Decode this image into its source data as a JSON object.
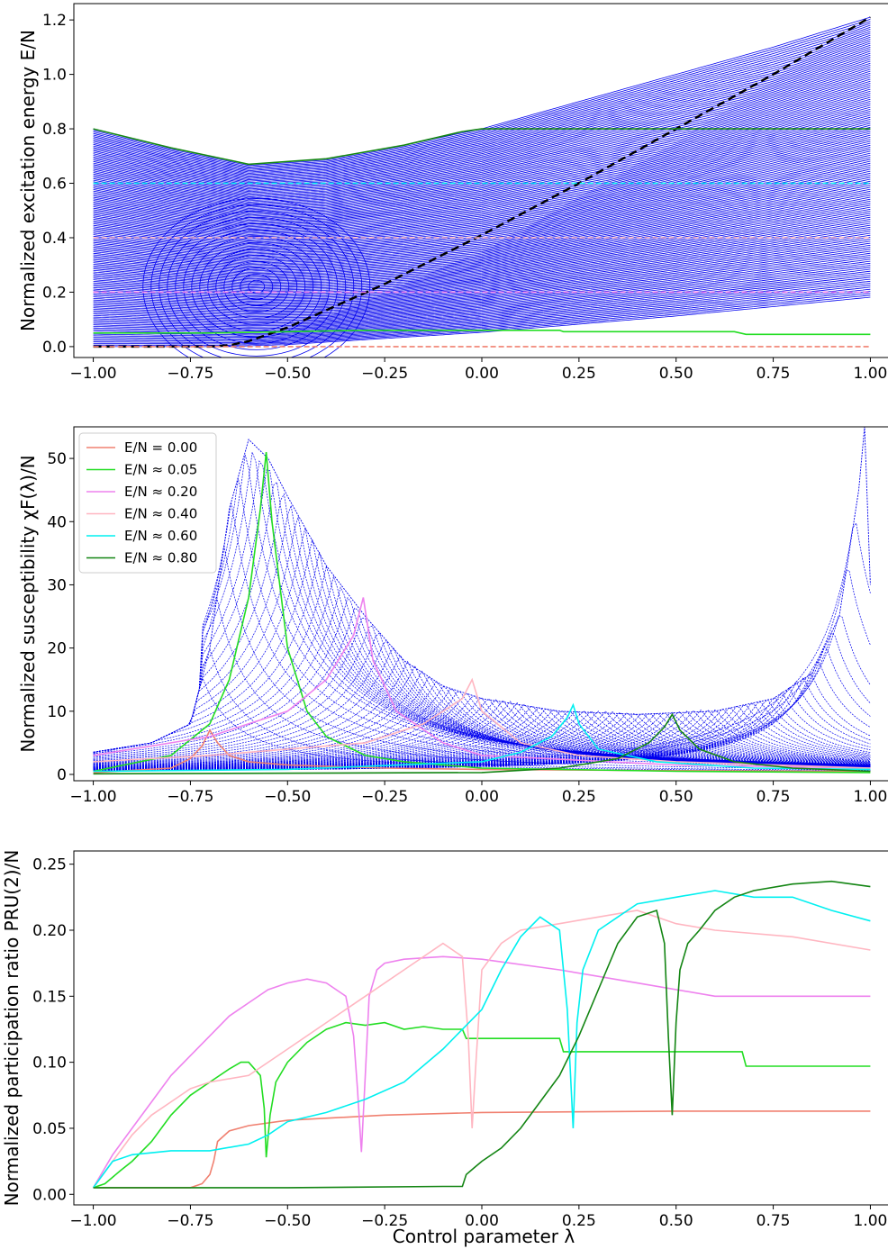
{
  "figure": {
    "xlabel": "Control parameter λ"
  },
  "colors": {
    "spectrum": "#0000ee",
    "gs_dashed": "#000000",
    "e0": "#f08070",
    "e005": "#22dd22",
    "e020": "#ee82ee",
    "e040": "#ffb6c1",
    "e060": "#00f0f0",
    "e080": "#138513"
  },
  "chart_data": [
    {
      "type": "line",
      "ylabel": "Normalized excitation energy E/N",
      "xlim": [
        -1.05,
        1.05
      ],
      "ylim": [
        -0.04,
        1.26
      ],
      "xticks": [
        "−1.00",
        "−0.75",
        "−0.50",
        "−0.25",
        "0.00",
        "0.25",
        "0.50",
        "0.75",
        "1.00"
      ],
      "xtick_values": [
        -1.0,
        -0.75,
        -0.5,
        -0.25,
        0.0,
        0.25,
        0.5,
        0.75,
        1.0
      ],
      "yticks": [
        "0.0",
        "0.2",
        "0.4",
        "0.6",
        "0.8",
        "1.0",
        "1.2"
      ],
      "ytick_values": [
        0.0,
        0.2,
        0.4,
        0.6,
        0.8,
        1.0,
        1.2
      ],
      "spectrum": {
        "levels": 140,
        "top_envelope": {
          "x": [
            -1.0,
            -0.8,
            -0.6,
            -0.4,
            -0.2,
            0.0,
            0.25,
            0.5,
            0.75,
            1.0
          ],
          "y": [
            0.8,
            0.73,
            0.67,
            0.69,
            0.74,
            0.8,
            0.9,
            1.0,
            1.1,
            1.21
          ]
        },
        "bottom_edge": {
          "x": [
            -1.0,
            -0.75,
            -0.65,
            -0.6,
            -0.5,
            0.0,
            0.5,
            1.0
          ],
          "y": [
            0.0,
            0.0,
            0.0,
            0.02,
            0.05,
            0.35,
            0.75,
            1.21
          ]
        }
      },
      "series": [
        {
          "key": "gs_dashed",
          "style": "dashed",
          "x": [
            -1.0,
            -0.7,
            -0.65,
            -0.6,
            -0.5,
            -0.25,
            0.0,
            0.25,
            0.5,
            0.75,
            1.0
          ],
          "y": [
            0.0,
            0.0,
            0.005,
            0.02,
            0.07,
            0.23,
            0.41,
            0.6,
            0.8,
            1.0,
            1.21
          ]
        },
        {
          "key": "e0",
          "x": [
            -1.0,
            1.0
          ],
          "y": [
            0.0,
            0.0
          ]
        },
        {
          "key": "e005",
          "x": [
            -1.0,
            -0.7,
            -0.5,
            -0.3,
            0.0,
            0.2,
            0.21,
            0.65,
            0.68,
            1.0
          ],
          "y": [
            0.05,
            0.05,
            0.055,
            0.06,
            0.06,
            0.06,
            0.055,
            0.055,
            0.045,
            0.045
          ]
        },
        {
          "key": "e020",
          "x": [
            -1.0,
            1.0
          ],
          "y": [
            0.2,
            0.2
          ]
        },
        {
          "key": "e040",
          "x": [
            -1.0,
            1.0
          ],
          "y": [
            0.4,
            0.4
          ]
        },
        {
          "key": "e060",
          "x": [
            -1.0,
            1.0
          ],
          "y": [
            0.6,
            0.6
          ]
        },
        {
          "key": "e080",
          "x": [
            -1.0,
            -0.8,
            -0.6,
            -0.4,
            -0.2,
            -0.05,
            0.0,
            1.0
          ],
          "y": [
            0.8,
            0.73,
            0.67,
            0.69,
            0.74,
            0.79,
            0.8,
            0.8
          ]
        }
      ]
    },
    {
      "type": "line",
      "ylabel": "Normalized susceptibility χF(λ)/N",
      "xlim": [
        -1.05,
        1.05
      ],
      "ylim": [
        -1,
        55
      ],
      "xticks": [
        "−1.00",
        "−0.75",
        "−0.50",
        "−0.25",
        "0.00",
        "0.25",
        "0.50",
        "0.75",
        "1.00"
      ],
      "xtick_values": [
        -1.0,
        -0.75,
        -0.5,
        -0.25,
        0.0,
        0.25,
        0.5,
        0.75,
        1.0
      ],
      "yticks": [
        "0",
        "10",
        "20",
        "30",
        "40",
        "50"
      ],
      "ytick_values": [
        0,
        10,
        20,
        30,
        40,
        50
      ],
      "legend": {
        "placement": "upper-left",
        "entries": [
          {
            "key": "e0",
            "label": "E/N = 0.00"
          },
          {
            "key": "e005",
            "label": "E/N ≈ 0.05"
          },
          {
            "key": "e020",
            "label": "E/N ≈ 0.20"
          },
          {
            "key": "e040",
            "label": "E/N ≈ 0.40"
          },
          {
            "key": "e060",
            "label": "E/N ≈ 0.60"
          },
          {
            "key": "e080",
            "label": "E/N ≈ 0.80"
          }
        ]
      },
      "spectrum": {
        "levels": 90,
        "envelope": {
          "x": [
            -1.0,
            -0.85,
            -0.75,
            -0.7,
            -0.65,
            -0.6,
            -0.55,
            -0.5,
            -0.4,
            -0.3,
            -0.2,
            -0.1,
            0.0,
            0.2,
            0.4,
            0.6,
            0.75,
            0.85,
            0.92,
            0.97,
            0.985,
            1.0
          ],
          "y": [
            3.5,
            5,
            8,
            20,
            42,
            53,
            50,
            44,
            33,
            25,
            18,
            14,
            12,
            10,
            9.5,
            10,
            12,
            16,
            25,
            45,
            55,
            30
          ]
        }
      },
      "series": [
        {
          "key": "e0",
          "x": [
            -1.0,
            -0.8,
            -0.75,
            -0.72,
            -0.7,
            -0.68,
            -0.65,
            -0.6,
            -0.5,
            -0.25,
            0.0,
            0.5,
            1.0
          ],
          "y": [
            0.3,
            1.0,
            2.5,
            4.5,
            7,
            5,
            3,
            2,
            1.5,
            1,
            0.8,
            0.6,
            0.5
          ]
        },
        {
          "key": "e005",
          "x": [
            -1.0,
            -0.8,
            -0.7,
            -0.65,
            -0.6,
            -0.57,
            -0.555,
            -0.54,
            -0.5,
            -0.45,
            -0.4,
            -0.3,
            -0.2,
            0.0,
            0.5,
            1.0
          ],
          "y": [
            0.5,
            3,
            8,
            15,
            28,
            42,
            51,
            40,
            20,
            10,
            6,
            3,
            2,
            1,
            0.5,
            0.3
          ]
        },
        {
          "key": "e020",
          "x": [
            -1.0,
            -0.7,
            -0.6,
            -0.5,
            -0.4,
            -0.33,
            -0.305,
            -0.28,
            -0.22,
            -0.1,
            0.0,
            0.5,
            1.0
          ],
          "y": [
            3,
            6,
            8,
            10,
            15,
            22,
            28,
            18,
            10,
            5,
            3,
            1.5,
            1
          ]
        },
        {
          "key": "e040",
          "x": [
            -1.0,
            -0.7,
            -0.5,
            -0.3,
            -0.15,
            -0.05,
            -0.025,
            0.0,
            0.1,
            0.25,
            0.5,
            1.0
          ],
          "y": [
            2,
            3,
            4,
            5,
            8,
            12,
            15,
            10,
            5,
            3,
            2,
            1
          ]
        },
        {
          "key": "e060",
          "x": [
            -1.0,
            -0.5,
            0.0,
            0.1,
            0.18,
            0.22,
            0.235,
            0.25,
            0.3,
            0.45,
            0.7,
            1.0
          ],
          "y": [
            0.5,
            0.8,
            2,
            3.5,
            6,
            9,
            11,
            8,
            4,
            2,
            1,
            0.8
          ]
        },
        {
          "key": "e080",
          "x": [
            -1.0,
            0.0,
            0.2,
            0.35,
            0.43,
            0.47,
            0.49,
            0.51,
            0.56,
            0.65,
            0.8,
            1.0
          ],
          "y": [
            0.1,
            0.3,
            1,
            2.5,
            5,
            7.5,
            9.5,
            7,
            4,
            2,
            1,
            0.5
          ]
        }
      ]
    },
    {
      "type": "line",
      "ylabel": "Normalized participation ratio PRU(2)/N",
      "xlabel_key": "figure.xlabel",
      "xlim": [
        -1.05,
        1.05
      ],
      "ylim": [
        -0.008,
        0.26
      ],
      "xticks": [
        "−1.00",
        "−0.75",
        "−0.50",
        "−0.25",
        "0.00",
        "0.25",
        "0.50",
        "0.75",
        "1.00"
      ],
      "xtick_values": [
        -1.0,
        -0.75,
        -0.5,
        -0.25,
        0.0,
        0.25,
        0.5,
        0.75,
        1.0
      ],
      "yticks": [
        "0.00",
        "0.05",
        "0.10",
        "0.15",
        "0.20",
        "0.25"
      ],
      "ytick_values": [
        0.0,
        0.05,
        0.1,
        0.15,
        0.2,
        0.25
      ],
      "series": [
        {
          "key": "e0",
          "x": [
            -1.0,
            -0.75,
            -0.72,
            -0.7,
            -0.69,
            -0.68,
            -0.65,
            -0.6,
            -0.5,
            -0.25,
            0.0,
            0.5,
            1.0
          ],
          "y": [
            0.005,
            0.005,
            0.008,
            0.015,
            0.025,
            0.04,
            0.048,
            0.052,
            0.056,
            0.06,
            0.062,
            0.063,
            0.063
          ]
        },
        {
          "key": "e005",
          "x": [
            -1.0,
            -0.97,
            -0.93,
            -0.9,
            -0.85,
            -0.8,
            -0.75,
            -0.7,
            -0.65,
            -0.62,
            -0.6,
            -0.57,
            -0.56,
            -0.555,
            -0.545,
            -0.53,
            -0.5,
            -0.45,
            -0.4,
            -0.35,
            -0.3,
            -0.25,
            -0.2,
            -0.15,
            -0.1,
            -0.05,
            -0.04,
            0.0,
            0.2,
            0.21,
            0.5,
            0.67,
            0.68,
            1.0
          ],
          "y": [
            0.005,
            0.008,
            0.018,
            0.025,
            0.04,
            0.06,
            0.075,
            0.085,
            0.095,
            0.1,
            0.1,
            0.09,
            0.065,
            0.028,
            0.06,
            0.085,
            0.1,
            0.115,
            0.125,
            0.13,
            0.128,
            0.13,
            0.125,
            0.127,
            0.125,
            0.125,
            0.118,
            0.118,
            0.118,
            0.108,
            0.108,
            0.108,
            0.097,
            0.097
          ]
        },
        {
          "key": "e020",
          "x": [
            -1.0,
            -0.95,
            -0.9,
            -0.85,
            -0.8,
            -0.75,
            -0.7,
            -0.65,
            -0.6,
            -0.55,
            -0.5,
            -0.45,
            -0.4,
            -0.35,
            -0.33,
            -0.32,
            -0.31,
            -0.3,
            -0.29,
            -0.27,
            -0.25,
            -0.2,
            -0.1,
            0.0,
            0.2,
            0.4,
            0.6,
            0.8,
            1.0
          ],
          "y": [
            0.005,
            0.03,
            0.05,
            0.07,
            0.09,
            0.105,
            0.12,
            0.135,
            0.145,
            0.155,
            0.16,
            0.163,
            0.16,
            0.15,
            0.12,
            0.08,
            0.032,
            0.09,
            0.15,
            0.17,
            0.175,
            0.178,
            0.18,
            0.178,
            0.17,
            0.16,
            0.15,
            0.15,
            0.15
          ]
        },
        {
          "key": "e040",
          "x": [
            -1.0,
            -0.95,
            -0.9,
            -0.85,
            -0.8,
            -0.75,
            -0.7,
            -0.6,
            -0.5,
            -0.4,
            -0.3,
            -0.2,
            -0.1,
            -0.05,
            -0.035,
            -0.025,
            -0.015,
            0.0,
            0.05,
            0.1,
            0.2,
            0.3,
            0.4,
            0.5,
            0.6,
            0.8,
            1.0
          ],
          "y": [
            0.005,
            0.025,
            0.045,
            0.06,
            0.07,
            0.08,
            0.085,
            0.09,
            0.11,
            0.13,
            0.15,
            0.17,
            0.19,
            0.18,
            0.12,
            0.05,
            0.1,
            0.17,
            0.19,
            0.2,
            0.205,
            0.21,
            0.215,
            0.205,
            0.2,
            0.195,
            0.185
          ]
        },
        {
          "key": "e060",
          "x": [
            -1.0,
            -0.95,
            -0.9,
            -0.8,
            -0.7,
            -0.6,
            -0.55,
            -0.5,
            -0.4,
            -0.3,
            -0.2,
            -0.1,
            0.0,
            0.05,
            0.1,
            0.15,
            0.2,
            0.22,
            0.235,
            0.245,
            0.26,
            0.3,
            0.35,
            0.4,
            0.5,
            0.6,
            0.7,
            0.8,
            0.9,
            1.0
          ],
          "y": [
            0.005,
            0.025,
            0.03,
            0.033,
            0.033,
            0.038,
            0.045,
            0.055,
            0.062,
            0.072,
            0.085,
            0.11,
            0.14,
            0.17,
            0.195,
            0.21,
            0.2,
            0.14,
            0.05,
            0.13,
            0.17,
            0.2,
            0.21,
            0.22,
            0.225,
            0.23,
            0.225,
            0.225,
            0.215,
            0.207
          ]
        },
        {
          "key": "e080",
          "x": [
            -1.0,
            -0.5,
            -0.1,
            -0.05,
            -0.04,
            -0.02,
            0.0,
            0.05,
            0.1,
            0.15,
            0.2,
            0.25,
            0.3,
            0.35,
            0.4,
            0.45,
            0.47,
            0.48,
            0.49,
            0.5,
            0.51,
            0.53,
            0.56,
            0.6,
            0.65,
            0.7,
            0.8,
            0.9,
            1.0
          ],
          "y": [
            0.005,
            0.005,
            0.006,
            0.006,
            0.015,
            0.02,
            0.025,
            0.035,
            0.05,
            0.07,
            0.09,
            0.12,
            0.155,
            0.19,
            0.21,
            0.215,
            0.19,
            0.12,
            0.06,
            0.13,
            0.17,
            0.19,
            0.2,
            0.215,
            0.225,
            0.23,
            0.235,
            0.237,
            0.233
          ]
        }
      ]
    }
  ]
}
